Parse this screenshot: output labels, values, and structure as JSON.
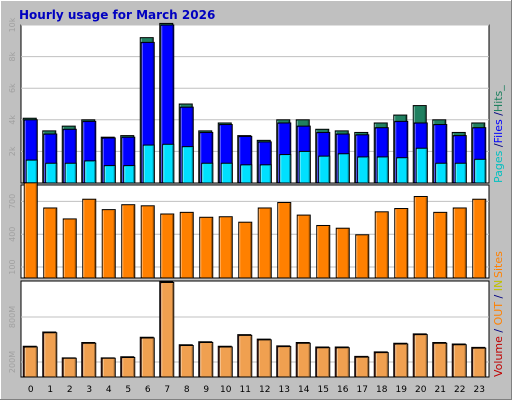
{
  "title": "Hourly usage for March 2026",
  "chart_data": [
    {
      "type": "bar",
      "x": [
        0,
        1,
        2,
        3,
        4,
        5,
        6,
        7,
        8,
        9,
        10,
        11,
        12,
        13,
        14,
        15,
        16,
        17,
        18,
        19,
        20,
        21,
        22,
        23
      ],
      "ylim": [
        0,
        10000
      ],
      "ytick_labels": [
        "2k",
        "4k",
        "6k",
        "8k",
        "10k"
      ],
      "yticks": [
        2000,
        4000,
        6000,
        8000,
        10000
      ],
      "legend": {
        "parts": [
          {
            "text": "Pages",
            "color": "#00c0c0"
          },
          {
            "text": " /",
            "color": "#000080"
          },
          {
            "text": "Files",
            "color": "#0000ff"
          },
          {
            "text": " /",
            "color": "#000080"
          },
          {
            "text": "Hits_",
            "color": "#208060"
          }
        ]
      },
      "series": [
        {
          "color": "#208060",
          "values": [
            4100,
            3300,
            3600,
            4000,
            2900,
            3000,
            9200,
            10100,
            5000,
            3300,
            3800,
            3000,
            2700,
            4000,
            4000,
            3400,
            3300,
            3200,
            3800,
            4300,
            4900,
            4000,
            3200,
            3800
          ]
        },
        {
          "color": "#0000ff",
          "values": [
            4000,
            3100,
            3400,
            3900,
            2850,
            2900,
            8900,
            10000,
            4800,
            3200,
            3700,
            2950,
            2600,
            3800,
            3600,
            3200,
            3100,
            3050,
            3500,
            3900,
            3800,
            3700,
            3000,
            3500
          ]
        },
        {
          "color": "#00e0ff",
          "values": [
            1450,
            1250,
            1250,
            1400,
            1100,
            1100,
            2400,
            2450,
            2300,
            1250,
            1250,
            1150,
            1150,
            1800,
            2000,
            1700,
            1850,
            1650,
            1650,
            1600,
            2200,
            1250,
            1250,
            1500
          ]
        }
      ]
    },
    {
      "type": "bar",
      "x": [
        0,
        1,
        2,
        3,
        4,
        5,
        6,
        7,
        8,
        9,
        10,
        11,
        12,
        13,
        14,
        15,
        16,
        17,
        18,
        19,
        20,
        21,
        22,
        23
      ],
      "ylim": [
        0,
        850
      ],
      "ytick_labels": [
        "100",
        "400",
        "700"
      ],
      "yticks": [
        100,
        400,
        700
      ],
      "legend": {
        "parts": [
          {
            "text": "Sites",
            "color": "#ff8000"
          }
        ]
      },
      "series": [
        {
          "color": "#ff8000",
          "values": [
            870,
            640,
            540,
            720,
            625,
            670,
            660,
            585,
            600,
            555,
            560,
            510,
            640,
            690,
            575,
            480,
            455,
            395,
            605,
            635,
            745,
            600,
            640,
            720
          ]
        }
      ]
    },
    {
      "type": "bar",
      "x": [
        0,
        1,
        2,
        3,
        4,
        5,
        6,
        7,
        8,
        9,
        10,
        11,
        12,
        13,
        14,
        15,
        16,
        17,
        18,
        19,
        20,
        21,
        22,
        23
      ],
      "ylim": [
        0,
        1280
      ],
      "ytick_labels": [
        "200M",
        "800M"
      ],
      "yticks": [
        200,
        800
      ],
      "legend": {
        "parts": [
          {
            "text": "Volume",
            "color": "#c00000"
          },
          {
            "text": " / ",
            "color": "#000080"
          },
          {
            "text": "OUT",
            "color": "#ff8000"
          },
          {
            "text": " / ",
            "color": "#000080"
          },
          {
            "text": "IN",
            "color": "#c0c000"
          }
        ]
      },
      "series": [
        {
          "color": "#c00000",
          "values": [
            410,
            600,
            255,
            460,
            255,
            270,
            530,
            1270,
            430,
            470,
            410,
            565,
            505,
            415,
            460,
            400,
            400,
            275,
            335,
            450,
            575,
            460,
            440,
            395
          ]
        },
        {
          "color": "#f0a050",
          "values": [
            400,
            590,
            250,
            450,
            250,
            260,
            520,
            1260,
            420,
            460,
            400,
            555,
            495,
            405,
            450,
            390,
            390,
            265,
            325,
            440,
            565,
            450,
            430,
            385
          ]
        }
      ]
    }
  ]
}
